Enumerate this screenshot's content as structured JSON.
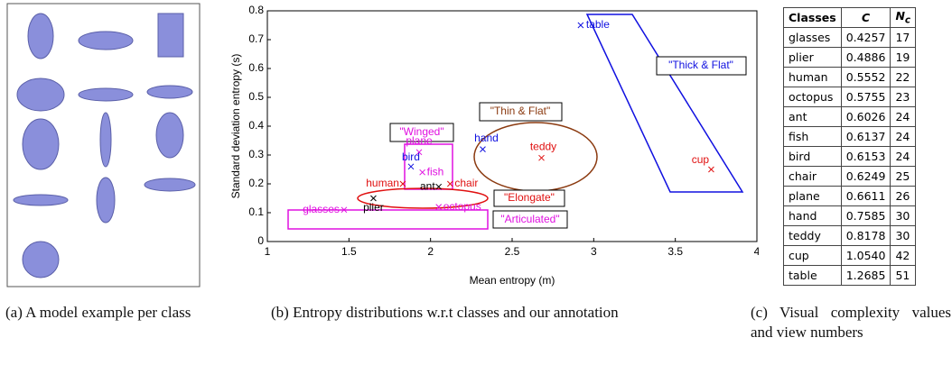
{
  "panel_a": {
    "caption": "(a) A model example per class"
  },
  "chart_data": {
    "type": "scatter",
    "xlabel": "Mean entropy (m)",
    "ylabel": "Standard deviation entropy (s)",
    "labels": [
      "table",
      "cup",
      "hand",
      "teddy",
      "plane",
      "bird",
      "fish",
      "human",
      "ant",
      "chair",
      "plier",
      "glasses",
      "octopus"
    ],
    "x": [
      2.92,
      3.72,
      2.32,
      2.68,
      1.93,
      1.88,
      1.95,
      1.83,
      2.05,
      2.12,
      1.65,
      1.47,
      2.05
    ],
    "y": [
      0.75,
      0.25,
      0.32,
      0.29,
      0.31,
      0.26,
      0.24,
      0.2,
      0.19,
      0.2,
      0.15,
      0.11,
      0.12
    ],
    "colors": [
      "#1010e0",
      "#e01010",
      "#1010e0",
      "#e01010",
      "#e010e0",
      "#1010e0",
      "#e010e0",
      "#e01010",
      "#000000",
      "#e01010",
      "#000000",
      "#e010e0",
      "#e010e0"
    ],
    "xlim": [
      1,
      4
    ],
    "xticks": [
      1,
      1.5,
      2,
      2.5,
      3,
      3.5,
      4
    ],
    "ylim": [
      0,
      0.8
    ],
    "yticks": [
      0,
      0.1,
      0.2,
      0.3,
      0.4,
      0.5,
      0.6,
      0.7,
      0.8
    ],
    "annotations": [
      "\"Thick & Flat\"",
      "\"Thin & Flat\"",
      "\"Winged\"",
      "\"Elongate\"",
      "\"Articulated\""
    ],
    "caption": "(b) Entropy distributions w.r.t classes and our annotation"
  },
  "table": {
    "header": [
      "Classes",
      "C",
      {
        "text": "N",
        "sub": "c"
      }
    ],
    "rows": [
      [
        "glasses",
        "0.4257",
        17
      ],
      [
        "plier",
        "0.4886",
        19
      ],
      [
        "human",
        "0.5552",
        22
      ],
      [
        "octopus",
        "0.5755",
        23
      ],
      [
        "ant",
        "0.6026",
        24
      ],
      [
        "fish",
        "0.6137",
        24
      ],
      [
        "bird",
        "0.6153",
        24
      ],
      [
        "chair",
        "0.6249",
        25
      ],
      [
        "plane",
        "0.6611",
        26
      ],
      [
        "hand",
        "0.7585",
        30
      ],
      [
        "teddy",
        "0.8178",
        30
      ],
      [
        "cup",
        "1.0540",
        42
      ],
      [
        "table",
        "1.2685",
        51
      ]
    ],
    "caption": "(c) Visual complexity values and view numbers"
  }
}
